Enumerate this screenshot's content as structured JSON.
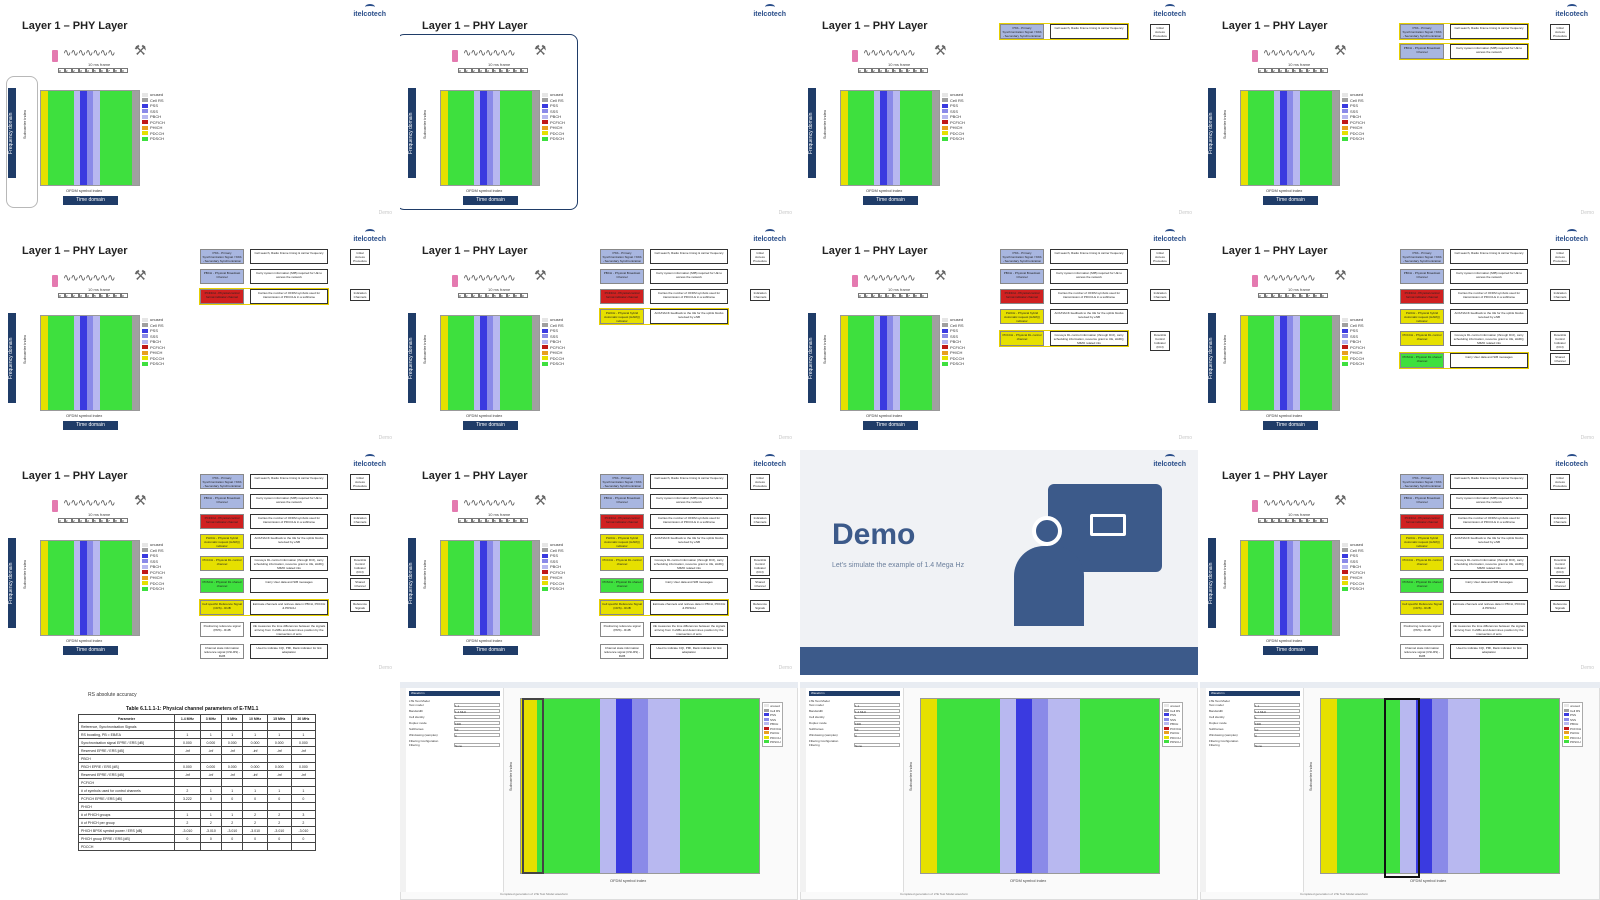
{
  "slide_title": "Layer 1 – PHY Layer",
  "logo_text": "itelcotech",
  "watermark": "Demo",
  "phy": {
    "frame_label": "10 ms frame",
    "frame_slots": [
      "0",
      "1",
      "2",
      "3",
      "4",
      "5",
      "6",
      "7",
      "8",
      "9"
    ],
    "freq_domain": "Frequency domain",
    "subcarrier_label": "Subcarrier index",
    "x_label": "OFDM symbol index",
    "time_domain": "Time domain"
  },
  "legend": [
    "unused",
    "Cell RS",
    "PSS",
    "SSS",
    "PBCH",
    "PCFICH",
    "PHICH",
    "PDCCH",
    "PDSCH"
  ],
  "legend_colors": [
    "#e6e6e6",
    "#a0a0a0",
    "#3a3ae0",
    "#8a8ae8",
    "#b8b8f0",
    "#c01818",
    "#e8a020",
    "#e6e000",
    "#3ee03e"
  ],
  "channels": [
    {
      "name": "PSS - Primary Synchronization Signal / SSS - Secondary Synchronization Signal",
      "desc": "Cell search, Radio Frame timing & carrier frequency",
      "group": "Initial Access Procedure"
    },
    {
      "name": "PBCH - Physical Broadcast Channel",
      "desc": "Carry system information (MIB) required for UE to access the network",
      "group": ""
    },
    {
      "name": "PCFICH - Physical control format indicator channel",
      "desc": "Carries the number of OFDM symbols used for transmission of PDCCHs in a subframe",
      "group": "Indication Channels"
    },
    {
      "name": "PHICH - Physical hybrid Automatic request (HARQ) indicator",
      "desc": "ACK/NACK feedback to the UE for the uplink blocks received by eNB",
      "group": ""
    },
    {
      "name": "PDCCH - Physical DL control channel",
      "desc": "Conveys DL control information (through DCI), carry scheduling information, resource grant to UE, HARQ, MIMO related info",
      "group": "Downlink Control Indicator (DCI)"
    },
    {
      "name": "PDSCH - Physical DL shared channel",
      "desc": "Carry User data and SIB messages",
      "group": "Shared Channel"
    },
    {
      "name": "Cell specific Reference Signal (CRS) - RxIB",
      "desc": "Estimate channels and retrieve data in PBCH, PDCCH & PDSCH",
      "group": "Reference Signals"
    },
    {
      "name": "Positioning reference signal (PRS) - RxIB",
      "desc": "UE measures the time differences between the signals arriving from 3 eNBs and determines position by the intersection of arcs",
      "group": ""
    },
    {
      "name": "Channel state information reference signal (CSI-RS) - RxIB",
      "desc": "Used to indicate CQI, PMI, Rank indicator for link adaptation",
      "group": ""
    }
  ],
  "demo": {
    "title": "Demo",
    "subtitle": "Let's simulate the example of 1.4 Mega Hz"
  },
  "doc": {
    "note": "RS absolute accuracy",
    "caption": "Table 6.1.1.1-1: Physical channel parameters of E-TM1.1",
    "headers": [
      "Parameter",
      "1.4 MHz",
      "3 MHz",
      "5 MHz",
      "10 MHz",
      "15 MHz",
      "20 MHz"
    ],
    "rows": [
      [
        "Reference, Synchronisation Signals",
        "",
        "",
        "",
        "",
        "",
        ""
      ],
      [
        "RS boosting, PB = EB/EA",
        "1",
        "1",
        "1",
        "1",
        "1",
        "1"
      ],
      [
        "Synchronisation signal EPRE / ERS [dB]",
        "0.000",
        "0.000",
        "0.000",
        "0.000",
        "0.000",
        "0.000"
      ],
      [
        "Reserved EPRE / ERS [dB]",
        "-inf",
        "-inf",
        "-inf",
        "-inf",
        "-inf",
        "-inf"
      ],
      [
        "PBCH",
        "",
        "",
        "",
        "",
        "",
        ""
      ],
      [
        "PBCH EPRE / ERS [dB]",
        "0.000",
        "0.000",
        "0.000",
        "0.000",
        "0.000",
        "0.000"
      ],
      [
        "Reserved EPRE / ERS [dB]",
        "-inf",
        "-inf",
        "-inf",
        "-inf",
        "-inf",
        "-inf"
      ],
      [
        "PCFICH",
        "",
        "",
        "",
        "",
        "",
        ""
      ],
      [
        "# of symbols used for control channels",
        "2",
        "1",
        "1",
        "1",
        "1",
        "1"
      ],
      [
        "PCFICH EPRE / ERS [dB]",
        "3.222",
        "0",
        "0",
        "0",
        "0",
        "0"
      ],
      [
        "PHICH",
        "",
        "",
        "",
        "",
        "",
        ""
      ],
      [
        "# of PHICH groups",
        "1",
        "1",
        "1",
        "2",
        "2",
        "3"
      ],
      [
        "# of PHICH per group",
        "2",
        "2",
        "2",
        "2",
        "2",
        "2"
      ],
      [
        "PHICH BPSK symbol power / ERS [dB]",
        "-3.010",
        "-3.010",
        "-3.010",
        "-3.010",
        "-3.010",
        "-3.010"
      ],
      [
        "PHICH group EPRE / ERS [dB]",
        "0",
        "0",
        "0",
        "0",
        "0",
        "0"
      ],
      [
        "PDCCH",
        "",
        "",
        "",
        "",
        "",
        ""
      ]
    ]
  },
  "sim": {
    "panel_title": "Waveform",
    "section": "LTE Test Model",
    "fields": [
      {
        "label": "Test model",
        "value": "1.1"
      },
      {
        "label": "Bandwidth",
        "value": "1.4 MHz"
      },
      {
        "label": "Cell identity",
        "value": "1"
      },
      {
        "label": "Duplex mode",
        "value": "FDD"
      },
      {
        "label": "Subframes",
        "value": "10"
      },
      {
        "label": "Windowing (samples)",
        "value": "0"
      }
    ],
    "filter_section": "Filtering Configuration",
    "filtering_label": "Filtering",
    "filtering_value": "None",
    "x_label": "OFDM symbol index",
    "y_label": "Subcarrier index",
    "status": "Completed generation of LTE Test Model waveform"
  }
}
